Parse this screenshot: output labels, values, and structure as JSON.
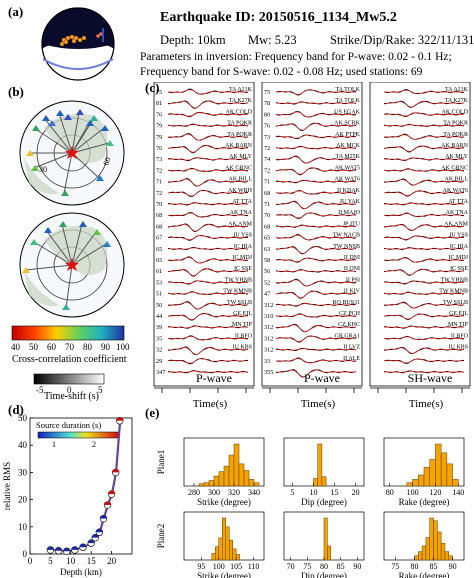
{
  "header": {
    "earthquake_id": "Earthquake ID: 20150516_1134_Mw5.2",
    "depth": "Depth: 10km",
    "mw": "Mw: 5.23",
    "sdr": "Strike/Dip/Rake: 322/11/131",
    "params1": "Parameters in inversion: Frequency band for P-wave: 0.02 - 0.1 Hz;",
    "params2": "Frequency band for S-wave: 0.02 - 0.08 Hz; used stations:  69"
  },
  "panels": {
    "a": "(a)",
    "b": "(b)",
    "c": "(c)",
    "d": "(d)",
    "e": "(e)"
  },
  "maps": {
    "ring_labels": [
      "30",
      "60"
    ],
    "colorbar_title": "Cross-correlation coefficient",
    "colorbar_ticks": [
      "40",
      "50",
      "60",
      "70",
      "80",
      "90",
      "100"
    ],
    "timeshift_title": "Time-shift (s)",
    "timeshift_ticks": [
      "-5",
      "0",
      "5"
    ]
  },
  "waveforms": {
    "columns": [
      {
        "label": "P-wave",
        "xlabel": "Time(s)",
        "rows": [
          {
            "a": "75",
            "s": "TA A21K"
          },
          {
            "a": "81",
            "s": "TA K27K"
          },
          {
            "a": "76",
            "s": "AK COLD"
          },
          {
            "a": "79",
            "s": "TA POKR"
          },
          {
            "a": "79",
            "s": "TA POKR"
          },
          {
            "a": "76",
            "s": "AK BARN"
          },
          {
            "a": "73",
            "s": "AK MLY"
          },
          {
            "a": "72",
            "s": "AK GRNC"
          },
          {
            "a": "71",
            "s": "AK BILL"
          },
          {
            "a": "72",
            "s": "AK WRH"
          },
          {
            "a": "70",
            "s": "AT TTA"
          },
          {
            "a": "68",
            "s": "AK TNA"
          },
          {
            "a": "68",
            "s": "AK ANM"
          },
          {
            "a": "67",
            "s": "IU YSS"
          },
          {
            "a": "65",
            "s": "IC HIA"
          },
          {
            "a": "65",
            "s": "IC MDJ"
          },
          {
            "a": "61",
            "s": "IC SSE"
          },
          {
            "a": "53",
            "s": "TW YHNB"
          },
          {
            "a": "51",
            "s": "TW KMNB"
          },
          {
            "a": "50",
            "s": "TW SSLB"
          },
          {
            "a": "44",
            "s": "GE EIL"
          },
          {
            "a": "39",
            "s": "MN TIP"
          },
          {
            "a": "35",
            "s": "II BFO"
          },
          {
            "a": "32",
            "s": "IU KBS"
          },
          {
            "a": "29",
            "s": ""
          },
          {
            "a": "347",
            "s": ""
          }
        ]
      },
      {
        "label": "P-wave",
        "xlabel": "Time(s)",
        "rows": [
          {
            "a": "75",
            "s": "TA TOLK"
          },
          {
            "a": "78",
            "s": "TA TOLK"
          },
          {
            "a": "80",
            "s": "US EGAK"
          },
          {
            "a": "76",
            "s": "AK SCRK"
          },
          {
            "a": "73",
            "s": "AK PTPK"
          },
          {
            "a": "72",
            "s": "AK MCK"
          },
          {
            "a": "74",
            "s": "TA M25K"
          },
          {
            "a": "72",
            "s": "AK WAT5"
          },
          {
            "a": "71",
            "s": "AK WAT6"
          },
          {
            "a": "68",
            "s": "II KDAK"
          },
          {
            "a": "71",
            "s": "IU YAK"
          },
          {
            "a": "70",
            "s": "II MAJO"
          },
          {
            "a": "68",
            "s": "JP JTU"
          },
          {
            "a": "65",
            "s": "TW NACB"
          },
          {
            "a": "63",
            "s": "TW NNSB"
          },
          {
            "a": "58",
            "s": "II DNI"
          },
          {
            "a": "56",
            "s": "II ONI"
          },
          {
            "a": "52",
            "s": "II PSI"
          },
          {
            "a": "47",
            "s": "II KIV"
          },
          {
            "a": "312",
            "s": "RO BUS31"
          },
          {
            "a": "310",
            "s": "CZ PCH"
          },
          {
            "a": "312",
            "s": "CZ KHC"
          },
          {
            "a": "312",
            "s": "GR GRA1"
          },
          {
            "a": "312",
            "s": "II LVZ"
          },
          {
            "a": "33",
            "s": "II ALE"
          },
          {
            "a": "355",
            "s": ""
          }
        ]
      },
      {
        "label": "SH-wave",
        "xlabel": "Time(s)",
        "rows": [
          {
            "a": "",
            "s": "TA A21K"
          },
          {
            "a": "",
            "s": "TA K27K"
          },
          {
            "a": "",
            "s": "AK COLD"
          },
          {
            "a": "",
            "s": "TA POKR"
          },
          {
            "a": "",
            "s": "TA POKR"
          },
          {
            "a": "",
            "s": "AK BARN"
          },
          {
            "a": "",
            "s": "AK MLY"
          },
          {
            "a": "",
            "s": "AK GRNC"
          },
          {
            "a": "",
            "s": "AK BILL"
          },
          {
            "a": "",
            "s": "AK WAT6"
          },
          {
            "a": "",
            "s": "AT TTA"
          },
          {
            "a": "",
            "s": "AK TNA"
          },
          {
            "a": "",
            "s": "AK ANM"
          },
          {
            "a": "",
            "s": "IU YSS"
          },
          {
            "a": "",
            "s": "IC HIA"
          },
          {
            "a": "",
            "s": "IC MDJ"
          },
          {
            "a": "",
            "s": "IC SSE"
          },
          {
            "a": "",
            "s": "TW YHNB"
          },
          {
            "a": "",
            "s": "TW KMNB"
          },
          {
            "a": "",
            "s": "TW SSLB"
          },
          {
            "a": "",
            "s": "GE EIL"
          },
          {
            "a": "",
            "s": "MN TIP"
          },
          {
            "a": "",
            "s": "II BFO"
          },
          {
            "a": "",
            "s": "IU KBS"
          },
          {
            "a": "",
            "s": ""
          },
          {
            "a": "",
            "s": ""
          }
        ]
      }
    ]
  },
  "chart_data": [
    {
      "type": "line",
      "panel": "d",
      "title": "",
      "xlabel": "Depth (km)",
      "ylabel": "relative RMS",
      "xlim": [
        0,
        25
      ],
      "ylim": [
        0,
        50
      ],
      "xticks": [
        0,
        5,
        10,
        15,
        20
      ],
      "yticks": [
        0,
        10,
        20,
        30,
        40,
        50
      ],
      "legend_title": "Source duration (s)",
      "legend_ticks": [
        "1",
        "2"
      ],
      "series": [
        {
          "x": [
            5,
            7,
            9,
            11,
            13,
            15,
            16,
            17,
            18,
            19,
            20,
            21,
            22
          ],
          "y": [
            1.5,
            1.2,
            1.0,
            1.5,
            2.5,
            4,
            6,
            8,
            13,
            18,
            22,
            30,
            49
          ]
        }
      ]
    },
    {
      "type": "bar",
      "panel": "e",
      "row_labels": [
        "Plane1",
        "Plane2"
      ],
      "histograms": [
        {
          "xlabel": "Strike (degree)",
          "xticks": [
            "280",
            "300",
            "320",
            "340"
          ],
          "xlim": [
            270,
            350
          ],
          "bins": [
            285,
            290,
            295,
            300,
            305,
            310,
            315,
            320,
            325,
            330,
            335,
            340
          ],
          "values": [
            2,
            3,
            5,
            9,
            13,
            18,
            28,
            38,
            20,
            14,
            6,
            3
          ]
        },
        {
          "xlabel": "Dip (degree)",
          "xticks": [
            "5",
            "10",
            "15",
            "20"
          ],
          "xlim": [
            3,
            22
          ],
          "bins": [
            10,
            11,
            12
          ],
          "values": [
            8,
            45,
            10
          ]
        },
        {
          "xlabel": "Rake (degree)",
          "xticks": [
            "80",
            "100",
            "120",
            "140"
          ],
          "xlim": [
            75,
            145
          ],
          "bins": [
            95,
            100,
            105,
            110,
            115,
            120,
            125,
            130,
            135
          ],
          "values": [
            3,
            6,
            10,
            17,
            24,
            38,
            30,
            20,
            6
          ]
        },
        {
          "xlabel": "Strike (degree)",
          "xticks": [
            "95",
            "100",
            "105",
            "110"
          ],
          "xlim": [
            90,
            113
          ],
          "bins": [
            98,
            99,
            100,
            101,
            102,
            103,
            104,
            105
          ],
          "values": [
            6,
            12,
            20,
            38,
            30,
            18,
            10,
            5
          ]
        },
        {
          "xlabel": "Dip (degree)",
          "xticks": [
            "70",
            "75",
            "80",
            "85",
            "90"
          ],
          "xlim": [
            68,
            92
          ],
          "bins": [
            80,
            81
          ],
          "values": [
            60,
            20
          ]
        },
        {
          "xlabel": "Rake (degree)",
          "xticks": [
            "75",
            "80",
            "85",
            "90"
          ],
          "xlim": [
            72,
            93
          ],
          "bins": [
            80,
            81,
            82,
            83,
            84,
            85,
            86,
            87,
            88,
            89
          ],
          "values": [
            3,
            6,
            10,
            16,
            30,
            28,
            20,
            12,
            6,
            3
          ]
        }
      ]
    }
  ]
}
